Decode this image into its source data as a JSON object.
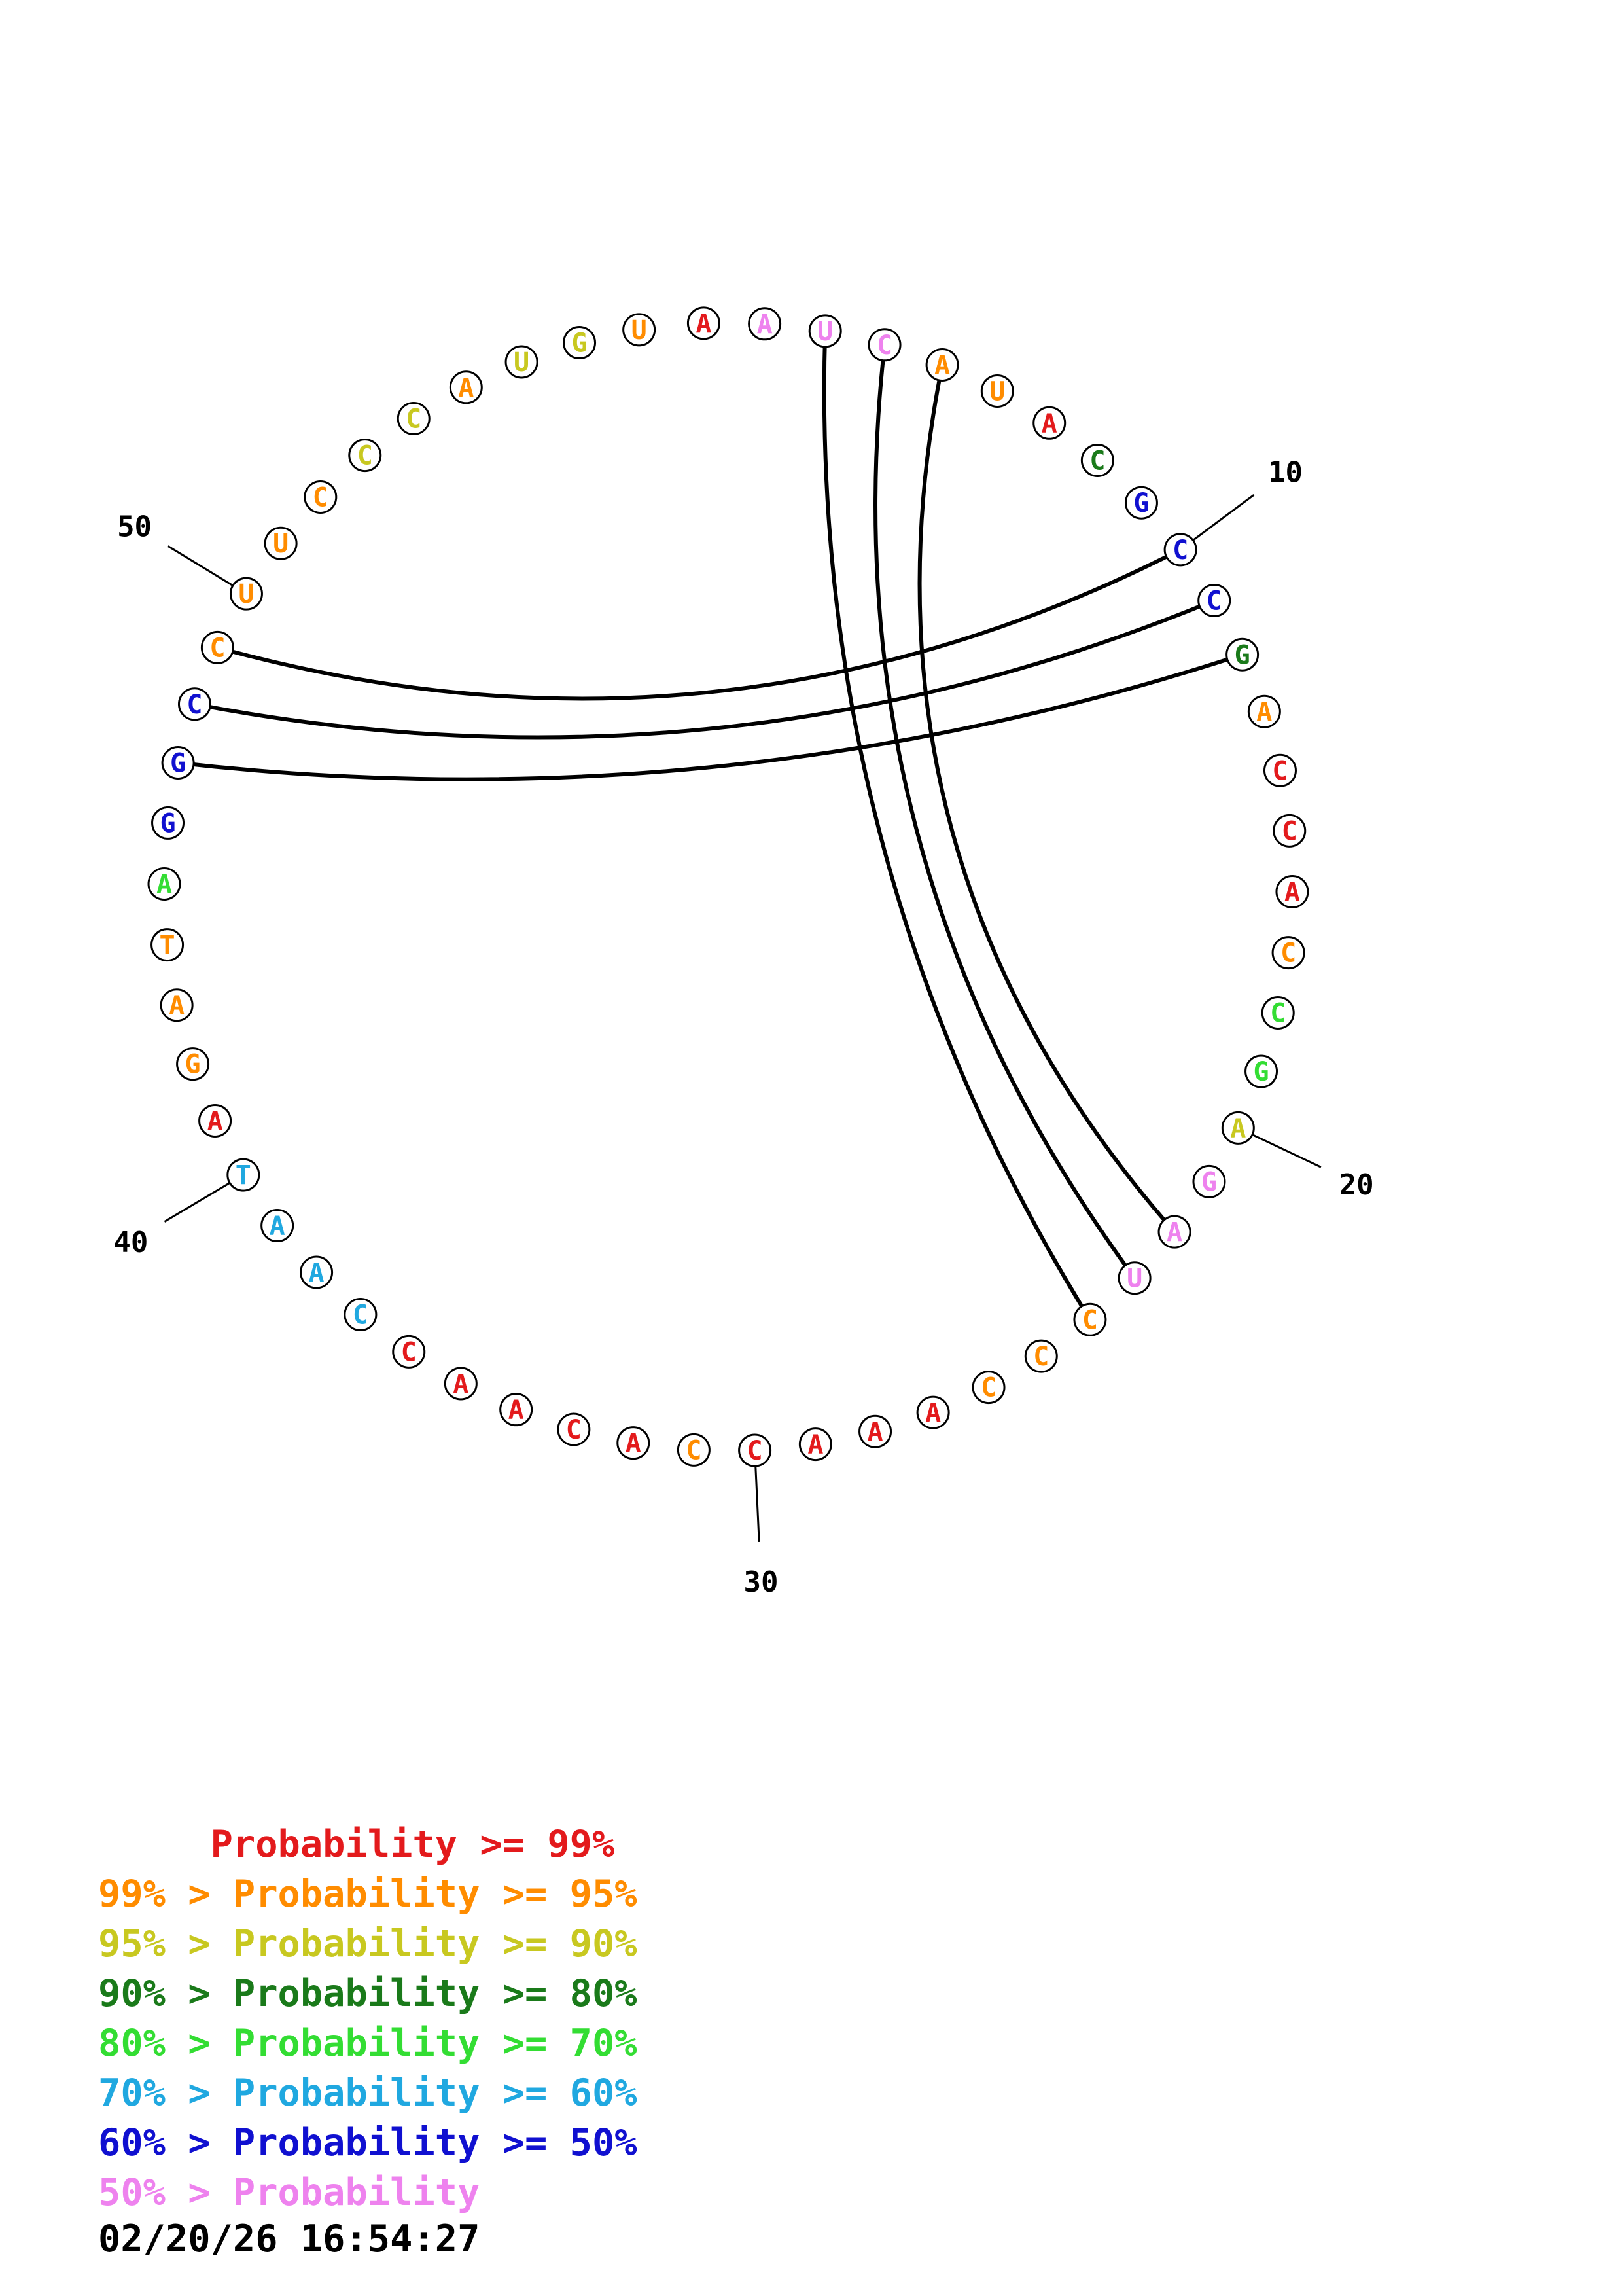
{
  "structure": {
    "sequence": [
      "A",
      "A",
      "U",
      "C",
      "A",
      "U",
      "A",
      "C",
      "G",
      "C",
      "C",
      "G",
      "A",
      "C",
      "C",
      "A",
      "C",
      "C",
      "G",
      "A",
      "G",
      "A",
      "U",
      "C",
      "C",
      "C",
      "A",
      "A",
      "A",
      "C",
      "C",
      "A",
      "C",
      "A",
      "A",
      "C",
      "C",
      "A",
      "A",
      "T",
      "A",
      "G",
      "A",
      "T",
      "A",
      "G",
      "G",
      "C",
      "C",
      "U",
      "U",
      "C",
      "C",
      "C",
      "A",
      "U",
      "G",
      "U"
    ],
    "colors": [
      "#e31a1c",
      "#ee82ee",
      "#ee82ee",
      "#ee82ee",
      "#ff8c00",
      "#ff8c00",
      "#e31a1c",
      "#1a7a1a",
      "#1010d0",
      "#1010d0",
      "#1010d0",
      "#1a7a1a",
      "#ff8c00",
      "#e31a1c",
      "#e31a1c",
      "#e31a1c",
      "#ff8c00",
      "#33dd33",
      "#33dd33",
      "#c8c820",
      "#ee82ee",
      "#ee82ee",
      "#ee82ee",
      "#ff8c00",
      "#ff8c00",
      "#ff8c00",
      "#e31a1c",
      "#e31a1c",
      "#e31a1c",
      "#e31a1c",
      "#ff8c00",
      "#e31a1c",
      "#e31a1c",
      "#e31a1c",
      "#e31a1c",
      "#e31a1c",
      "#20a8e0",
      "#20a8e0",
      "#20a8e0",
      "#20a8e0",
      "#e31a1c",
      "#ff8c00",
      "#ff8c00",
      "#ff8c00",
      "#33dd33",
      "#1010d0",
      "#1010d0",
      "#1010d0",
      "#ff8c00",
      "#ff8c00",
      "#ff8c00",
      "#ff8c00",
      "#c8c820",
      "#c8c820",
      "#ff8c00",
      "#c8c820",
      "#c8c820",
      "#ff8c00"
    ],
    "pairs": [
      [
        2,
        23
      ],
      [
        3,
        22
      ],
      [
        4,
        21
      ],
      [
        9,
        48
      ],
      [
        10,
        47
      ],
      [
        11,
        46
      ]
    ],
    "position_labels": [
      {
        "index": 10,
        "label": "10"
      },
      {
        "index": 20,
        "label": "20"
      },
      {
        "index": 30,
        "label": "30"
      },
      {
        "index": 40,
        "label": "40"
      },
      {
        "index": 50,
        "label": "50"
      }
    ]
  },
  "legend": {
    "lines": [
      {
        "text": "     Probability >= 99%",
        "color": "#e31a1c"
      },
      {
        "text": "99% > Probability >= 95%",
        "color": "#ff8c00"
      },
      {
        "text": "95% > Probability >= 90%",
        "color": "#c8c820"
      },
      {
        "text": "90% > Probability >= 80%",
        "color": "#1a7a1a"
      },
      {
        "text": "80% > Probability >= 70%",
        "color": "#33dd33"
      },
      {
        "text": "70% > Probability >= 60%",
        "color": "#20a8e0"
      },
      {
        "text": "60% > Probability >= 50%",
        "color": "#1010d0"
      },
      {
        "text": "50% > Probability",
        "color": "#ee82ee"
      }
    ]
  },
  "timestamp": "02/20/26 16:54:27"
}
